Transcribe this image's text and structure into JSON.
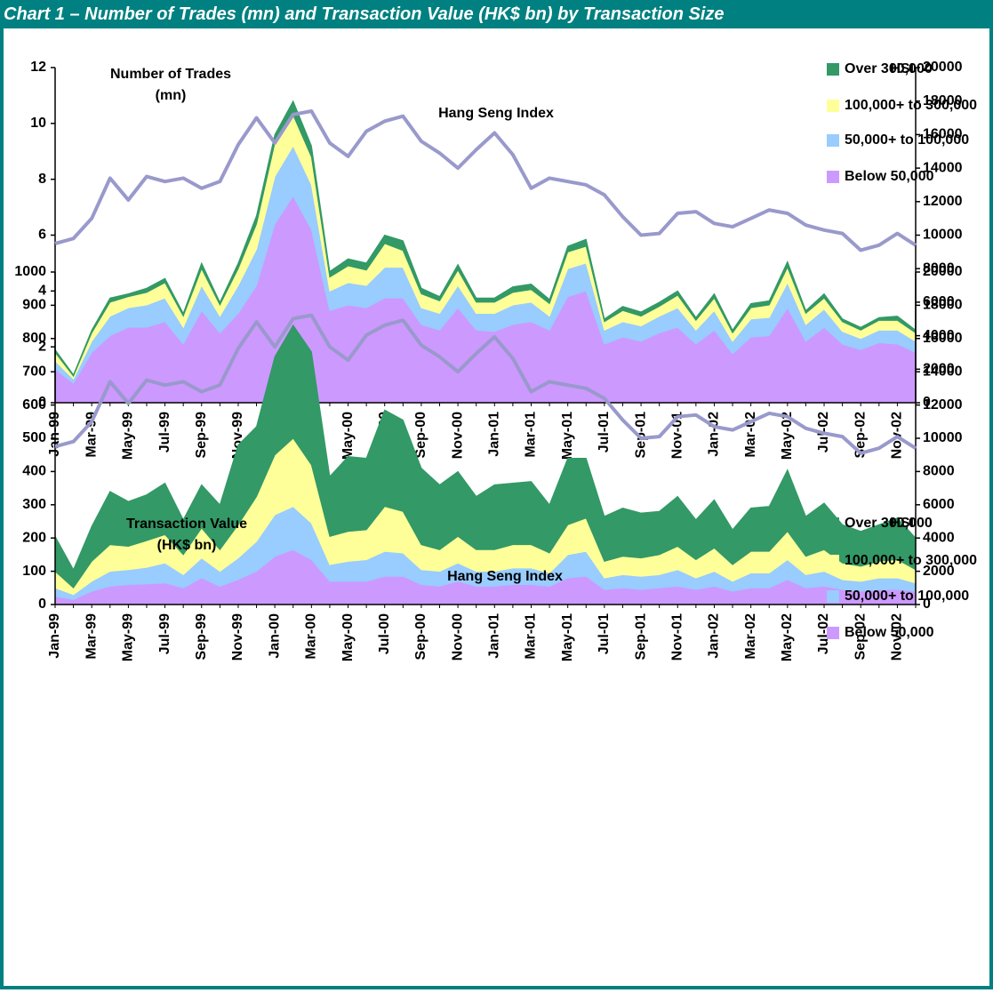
{
  "title": "Chart 1 – Number of Trades (mn) and Transaction Value (HK$ bn) by Transaction Size",
  "chart_data": [
    {
      "type": "area",
      "stacked": true,
      "ylabel": [
        "Number of Trades",
        "(mn)"
      ],
      "y2label": "HSI",
      "categories": [
        "Jan-99",
        null,
        "Mar-99",
        null,
        "May-99",
        null,
        "Jul-99",
        null,
        "Sep-99",
        null,
        "Nov-99",
        null,
        "Jan-00",
        null,
        "Mar-00",
        null,
        "May-00",
        null,
        "Jul-00",
        null,
        "Sep-00",
        null,
        "Nov-00",
        null,
        "Jan-01",
        null,
        "Mar-01",
        null,
        "May-01",
        null,
        "Jul-01",
        null,
        "Sep-01",
        null,
        "Nov-01",
        null,
        "Jan-02",
        null,
        "Mar-02",
        null,
        "May-02",
        null,
        "Jul-02",
        null,
        "Sep-02",
        null,
        "Nov-02",
        null
      ],
      "ylim": [
        0,
        12
      ],
      "yticks": [
        0,
        2,
        4,
        6,
        8,
        10,
        12
      ],
      "y2lim": [
        0,
        20000
      ],
      "y2ticks": [
        0,
        2000,
        4000,
        6000,
        8000,
        10000,
        12000,
        14000,
        16000,
        18000,
        20000
      ],
      "series": [
        {
          "name": "Below 50,000",
          "color": "#cc99ff",
          "values": [
            1.2,
            0.7,
            1.8,
            2.4,
            2.7,
            2.7,
            2.9,
            2.1,
            3.3,
            2.5,
            3.2,
            4.2,
            6.4,
            7.4,
            6.2,
            3.3,
            3.5,
            3.4,
            3.75,
            3.75,
            2.8,
            2.6,
            3.4,
            2.6,
            2.55,
            2.8,
            2.9,
            2.6,
            3.8,
            4.0,
            2.1,
            2.35,
            2.2,
            2.5,
            2.7,
            2.1,
            2.6,
            1.75,
            2.35,
            2.4,
            3.4,
            2.2,
            2.7,
            2.1,
            1.9,
            2.15,
            2.1,
            1.8
          ]
        },
        {
          "name": "50,000+ to 100,000",
          "color": "#99ccff",
          "values": [
            0.3,
            0.15,
            0.4,
            0.7,
            0.7,
            0.8,
            0.85,
            0.6,
            0.9,
            0.6,
            1.0,
            1.3,
            1.7,
            1.8,
            1.6,
            0.7,
            0.8,
            0.8,
            1.1,
            1.1,
            0.6,
            0.6,
            0.8,
            0.6,
            0.65,
            0.7,
            0.7,
            0.5,
            1.0,
            1.0,
            0.5,
            0.55,
            0.55,
            0.6,
            0.7,
            0.5,
            0.7,
            0.45,
            0.65,
            0.65,
            0.9,
            0.6,
            0.65,
            0.45,
            0.4,
            0.45,
            0.5,
            0.4
          ]
        },
        {
          "name": "100,000+ to 300,000",
          "color": "#ffff99",
          "values": [
            0.3,
            0.1,
            0.3,
            0.5,
            0.4,
            0.45,
            0.55,
            0.4,
            0.6,
            0.4,
            0.6,
            0.9,
            1.2,
            1.1,
            1.0,
            0.5,
            0.6,
            0.55,
            0.85,
            0.6,
            0.5,
            0.45,
            0.55,
            0.4,
            0.4,
            0.45,
            0.45,
            0.45,
            0.6,
            0.6,
            0.3,
            0.4,
            0.35,
            0.35,
            0.45,
            0.35,
            0.45,
            0.3,
            0.4,
            0.45,
            0.55,
            0.4,
            0.4,
            0.35,
            0.3,
            0.35,
            0.35,
            0.3
          ]
        },
        {
          "name": "Over 300,000",
          "color": "#339966",
          "values": [
            0.1,
            0.05,
            0.1,
            0.15,
            0.1,
            0.15,
            0.15,
            0.1,
            0.2,
            0.1,
            0.2,
            0.3,
            0.3,
            0.5,
            0.4,
            0.2,
            0.25,
            0.25,
            0.3,
            0.35,
            0.2,
            0.15,
            0.2,
            0.15,
            0.15,
            0.2,
            0.2,
            0.15,
            0.2,
            0.25,
            0.1,
            0.15,
            0.15,
            0.15,
            0.15,
            0.1,
            0.15,
            0.1,
            0.15,
            0.15,
            0.2,
            0.1,
            0.15,
            0.1,
            0.1,
            0.1,
            0.15,
            0.1
          ]
        },
        {
          "name": "Hang Seng Index",
          "type": "line",
          "axis": "y2",
          "color": "#9999cc",
          "values": [
            9500,
            9800,
            11000,
            13400,
            12100,
            13500,
            13200,
            13400,
            12800,
            13200,
            15400,
            17000,
            15500,
            17200,
            17400,
            15500,
            14700,
            16200,
            16800,
            17100,
            15600,
            14900,
            14000,
            15100,
            16100,
            14800,
            12800,
            13400,
            13200,
            13000,
            12400,
            11100,
            10000,
            10100,
            11300,
            11400,
            10700,
            10500,
            11000,
            11500,
            11300,
            10600,
            10300,
            10100,
            9100,
            9400,
            10100,
            9400
          ]
        }
      ]
    },
    {
      "type": "area",
      "stacked": true,
      "ylabel": [
        "Transaction Value",
        "(HK$ bn)"
      ],
      "y2label": "HSI",
      "categories": [
        "Jan-99",
        null,
        "Mar-99",
        null,
        "May-99",
        null,
        "Jul-99",
        null,
        "Sep-99",
        null,
        "Nov-99",
        null,
        "Jan-00",
        null,
        "Mar-00",
        null,
        "May-00",
        null,
        "Jul-00",
        null,
        "Sep-00",
        null,
        "Nov-00",
        null,
        "Jan-01",
        null,
        "Mar-01",
        null,
        "May-01",
        null,
        "Jul-01",
        null,
        "Sep-01",
        null,
        "Nov-01",
        null,
        "Jan-02",
        null,
        "Mar-02",
        null,
        "May-02",
        null,
        "Jul-02",
        null,
        "Sep-02",
        null,
        "Nov-02",
        null
      ],
      "ylim": [
        0,
        1000
      ],
      "yticks": [
        0,
        100,
        200,
        300,
        400,
        500,
        600,
        700,
        800,
        900,
        1000
      ],
      "y2lim": [
        0,
        20000
      ],
      "y2ticks": [
        0,
        2000,
        4000,
        6000,
        8000,
        10000,
        12000,
        14000,
        16000,
        18000,
        20000
      ],
      "series": [
        {
          "name": "Below 50,000",
          "color": "#cc99ff",
          "values": [
            25,
            15,
            40,
            55,
            60,
            62,
            65,
            50,
            80,
            55,
            75,
            100,
            145,
            165,
            135,
            70,
            70,
            70,
            85,
            85,
            60,
            55,
            70,
            55,
            55,
            60,
            60,
            55,
            80,
            85,
            45,
            50,
            45,
            50,
            55,
            45,
            55,
            40,
            50,
            50,
            75,
            50,
            55,
            45,
            40,
            45,
            45,
            40
          ]
        },
        {
          "name": "50,000+ to 100,000",
          "color": "#99ccff",
          "values": [
            25,
            15,
            30,
            45,
            45,
            50,
            60,
            40,
            60,
            45,
            65,
            90,
            125,
            130,
            110,
            50,
            60,
            65,
            75,
            70,
            45,
            45,
            55,
            45,
            45,
            50,
            50,
            40,
            70,
            75,
            35,
            40,
            40,
            40,
            50,
            35,
            45,
            30,
            45,
            45,
            60,
            40,
            45,
            30,
            30,
            35,
            35,
            25
          ]
        },
        {
          "name": "100,000+ to 300,000",
          "color": "#ffff99",
          "values": [
            50,
            20,
            60,
            80,
            70,
            80,
            85,
            60,
            90,
            65,
            100,
            135,
            180,
            205,
            175,
            85,
            90,
            90,
            135,
            125,
            75,
            65,
            80,
            65,
            65,
            70,
            70,
            60,
            90,
            100,
            50,
            55,
            55,
            60,
            70,
            55,
            70,
            50,
            65,
            65,
            85,
            55,
            65,
            50,
            45,
            50,
            55,
            40
          ]
        },
        {
          "name": "Over 300,000",
          "color": "#339966",
          "values": [
            105,
            55,
            105,
            160,
            135,
            138,
            155,
            105,
            130,
            135,
            240,
            210,
            295,
            340,
            340,
            180,
            225,
            215,
            290,
            275,
            230,
            195,
            195,
            160,
            195,
            185,
            190,
            145,
            200,
            180,
            135,
            145,
            135,
            130,
            150,
            120,
            145,
            105,
            130,
            135,
            185,
            120,
            140,
            115,
            105,
            110,
            125,
            95
          ]
        },
        {
          "name": "Hang Seng Index",
          "type": "line",
          "axis": "y2",
          "color": "#9999cc",
          "values": [
            9500,
            9800,
            11000,
            13400,
            12100,
            13500,
            13200,
            13400,
            12800,
            13200,
            15400,
            17000,
            15500,
            17200,
            17400,
            15500,
            14700,
            16200,
            16800,
            17100,
            15600,
            14900,
            14000,
            15100,
            16100,
            14800,
            12800,
            13400,
            13200,
            13000,
            12400,
            11100,
            10000,
            10100,
            11300,
            11400,
            10700,
            10500,
            11000,
            11500,
            11300,
            10600,
            10300,
            10100,
            9100,
            9400,
            10100,
            9400
          ]
        }
      ]
    }
  ]
}
